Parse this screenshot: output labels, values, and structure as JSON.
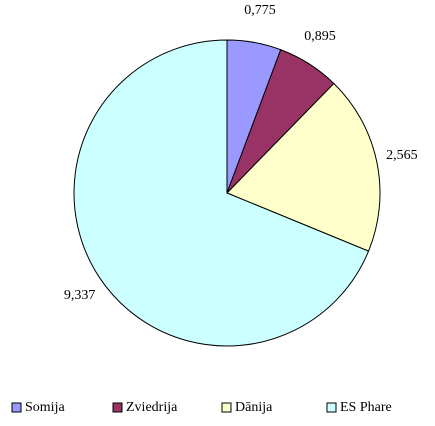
{
  "chart_data": {
    "type": "pie",
    "categories": [
      "Somija",
      "Zviedrija",
      "Dānija",
      "ES Phare"
    ],
    "values": [
      0.775,
      0.895,
      2.565,
      9.337
    ],
    "value_labels": [
      "0,775",
      "0,895",
      "2,565",
      "9,337"
    ],
    "colors": [
      "#9999ff",
      "#993366",
      "#ffffcc",
      "#ccffff"
    ],
    "legend": "bottom"
  }
}
